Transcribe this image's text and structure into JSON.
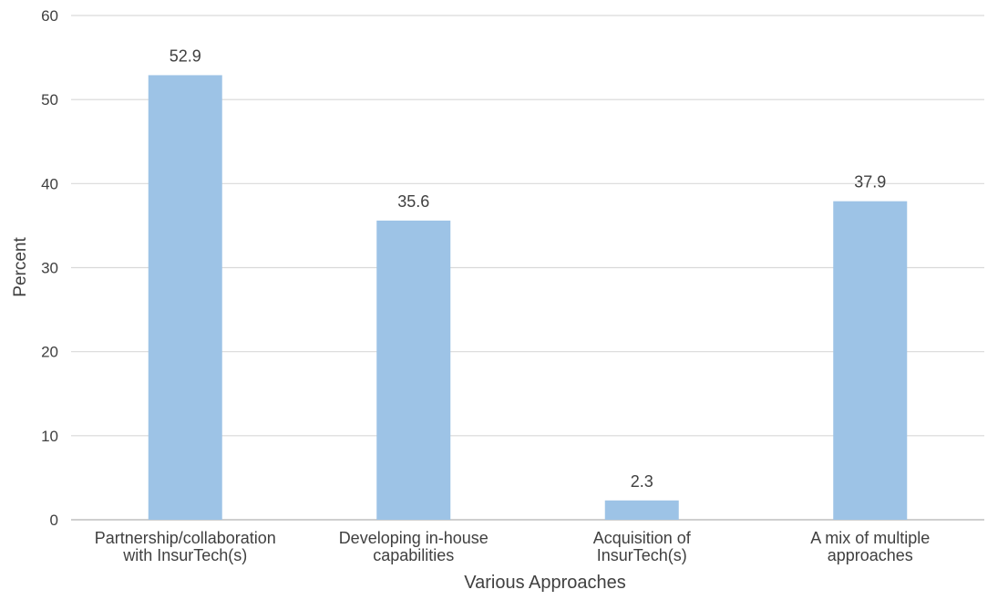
{
  "chart_data": {
    "type": "bar",
    "title": "",
    "xlabel": "Various Approaches",
    "ylabel": "Percent",
    "ylim": [
      0,
      60
    ],
    "yticks": [
      0,
      10,
      20,
      30,
      40,
      50,
      60
    ],
    "grid": true,
    "legend": "none",
    "categories": [
      [
        "Partnership/collaboration",
        "with InsurTech(s)"
      ],
      [
        "Developing in-house",
        "capabilities"
      ],
      [
        "Acquisition of",
        "InsurTech(s)"
      ],
      [
        "A mix of multiple",
        "approaches"
      ]
    ],
    "values": [
      52.9,
      35.6,
      2.3,
      37.9
    ],
    "value_labels": [
      "52.9",
      "35.6",
      "2.3",
      "37.9"
    ],
    "colors": {
      "bar": "#9dc3e6",
      "grid": "#d9d9d9",
      "text": "#404040"
    }
  }
}
